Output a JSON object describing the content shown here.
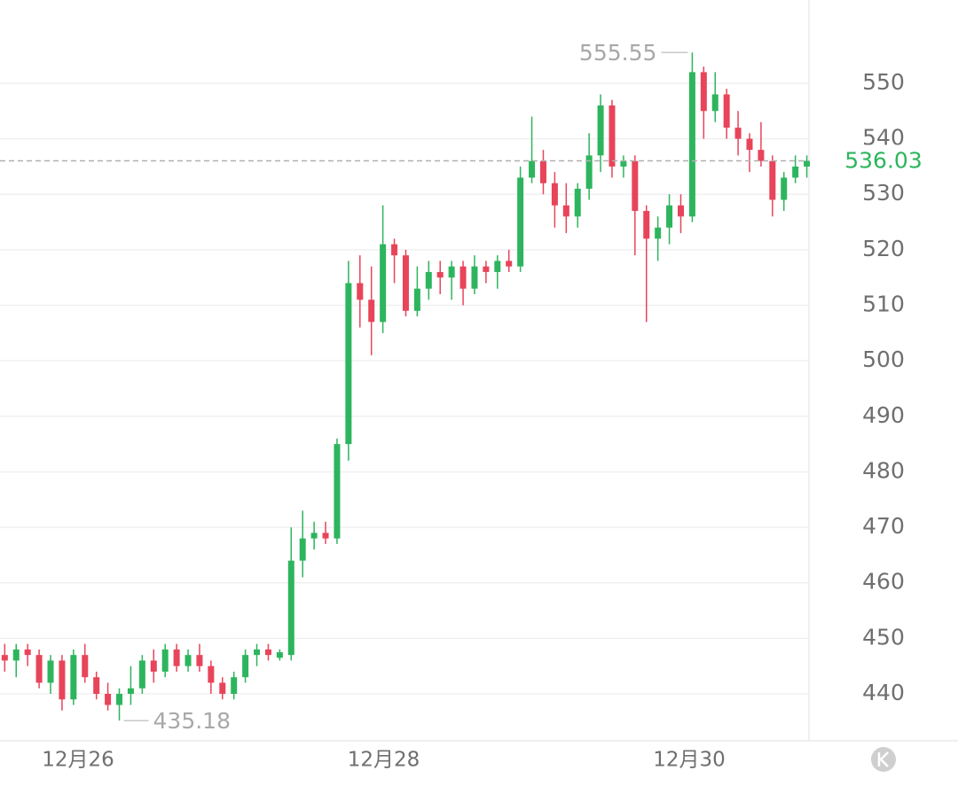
{
  "chart_data": {
    "type": "candlestick",
    "x": [
      25.52,
      25.595,
      25.67,
      25.745,
      25.82,
      25.895,
      25.97,
      26.045,
      26.12,
      26.195,
      26.27,
      26.345,
      26.42,
      26.495,
      26.57,
      26.645,
      26.72,
      26.795,
      26.87,
      26.945,
      27.02,
      27.095,
      27.17,
      27.245,
      27.32,
      27.395,
      27.47,
      27.545,
      27.62,
      27.695,
      27.77,
      27.845,
      27.92,
      27.995,
      28.07,
      28.145,
      28.22,
      28.295,
      28.37,
      28.445,
      28.52,
      28.595,
      28.67,
      28.745,
      28.82,
      28.895,
      28.97,
      29.045,
      29.12,
      29.195,
      29.27,
      29.345,
      29.42,
      29.495,
      29.57,
      29.645,
      29.72,
      29.795,
      29.87,
      29.945,
      30.02,
      30.095,
      30.17,
      30.245,
      30.32,
      30.395,
      30.47,
      30.545,
      30.62,
      30.695,
      30.77
    ],
    "open": [
      447,
      446,
      448,
      447,
      442,
      446,
      439,
      447,
      443,
      440,
      438,
      440,
      441,
      446,
      444,
      448,
      445,
      447,
      445,
      442,
      440,
      443,
      447,
      448,
      446.5,
      447,
      464,
      468,
      469,
      468,
      485,
      514,
      511,
      507,
      521,
      519,
      509,
      513,
      516,
      515,
      517,
      513,
      517,
      516,
      518,
      517,
      533,
      536,
      532,
      528,
      526,
      531,
      537,
      546,
      535,
      536,
      527,
      522,
      524,
      528,
      526,
      552,
      545,
      548,
      542,
      540,
      538,
      536,
      529,
      533,
      535
    ],
    "high": [
      449,
      449,
      449,
      448,
      447,
      447,
      448,
      449,
      444,
      442,
      441,
      445,
      447,
      448,
      449,
      449,
      448,
      449,
      446,
      443,
      444,
      448,
      449,
      449,
      448,
      470,
      473,
      471,
      471,
      486,
      518,
      519,
      517,
      528,
      522,
      520,
      517,
      518,
      518,
      518,
      518,
      519,
      518,
      519,
      520,
      535,
      544,
      538,
      534,
      532,
      532,
      541,
      548,
      547,
      537,
      537,
      528,
      526,
      530,
      530,
      555.55,
      553,
      552,
      549,
      545,
      541,
      543,
      537,
      534,
      537,
      537
    ],
    "low": [
      444,
      443,
      445,
      441,
      440,
      437,
      438,
      442,
      439,
      437,
      435.18,
      438,
      440,
      442,
      443,
      444,
      444,
      444,
      440,
      439,
      439,
      442,
      445,
      446,
      446,
      446,
      461,
      466,
      467,
      467,
      482,
      506,
      501,
      505,
      514,
      508,
      508,
      511,
      512,
      511,
      510,
      512,
      514,
      513,
      516,
      516,
      532,
      530,
      524,
      523,
      524,
      529,
      534,
      533,
      533,
      519,
      507,
      518,
      521,
      523,
      525,
      540,
      543,
      540,
      537,
      534,
      535,
      526,
      527,
      532,
      533
    ],
    "close": [
      446,
      448,
      447,
      442,
      446,
      439,
      447,
      443,
      440,
      438,
      440,
      441,
      446,
      444,
      448,
      445,
      447,
      445,
      442,
      440,
      443,
      447,
      448,
      447,
      447.5,
      464,
      468,
      469,
      468,
      485,
      514,
      511,
      507,
      521,
      519,
      509,
      513,
      516,
      515,
      517,
      513,
      517,
      516,
      518,
      517,
      533,
      536,
      532,
      528,
      526,
      531,
      537,
      546,
      535,
      536,
      527,
      522,
      524,
      528,
      526,
      552,
      545,
      548,
      542,
      540,
      538,
      536,
      529,
      533,
      535,
      536.03
    ],
    "up_color": "#2db55d",
    "down_color": "#e8445a",
    "xlim": [
      25.489,
      30.784
    ],
    "xticks": [
      {
        "value": 26,
        "label": "12月26"
      },
      {
        "value": 28,
        "label": "12月28"
      },
      {
        "value": 30,
        "label": "12月30"
      }
    ],
    "ylim": [
      431.7,
      565
    ],
    "yticks": [
      440,
      450,
      460,
      470,
      480,
      490,
      500,
      510,
      520,
      530,
      540,
      550
    ],
    "grid": true,
    "last_price": 536.03,
    "high_marker": 555.55,
    "low_marker": 435.18
  }
}
